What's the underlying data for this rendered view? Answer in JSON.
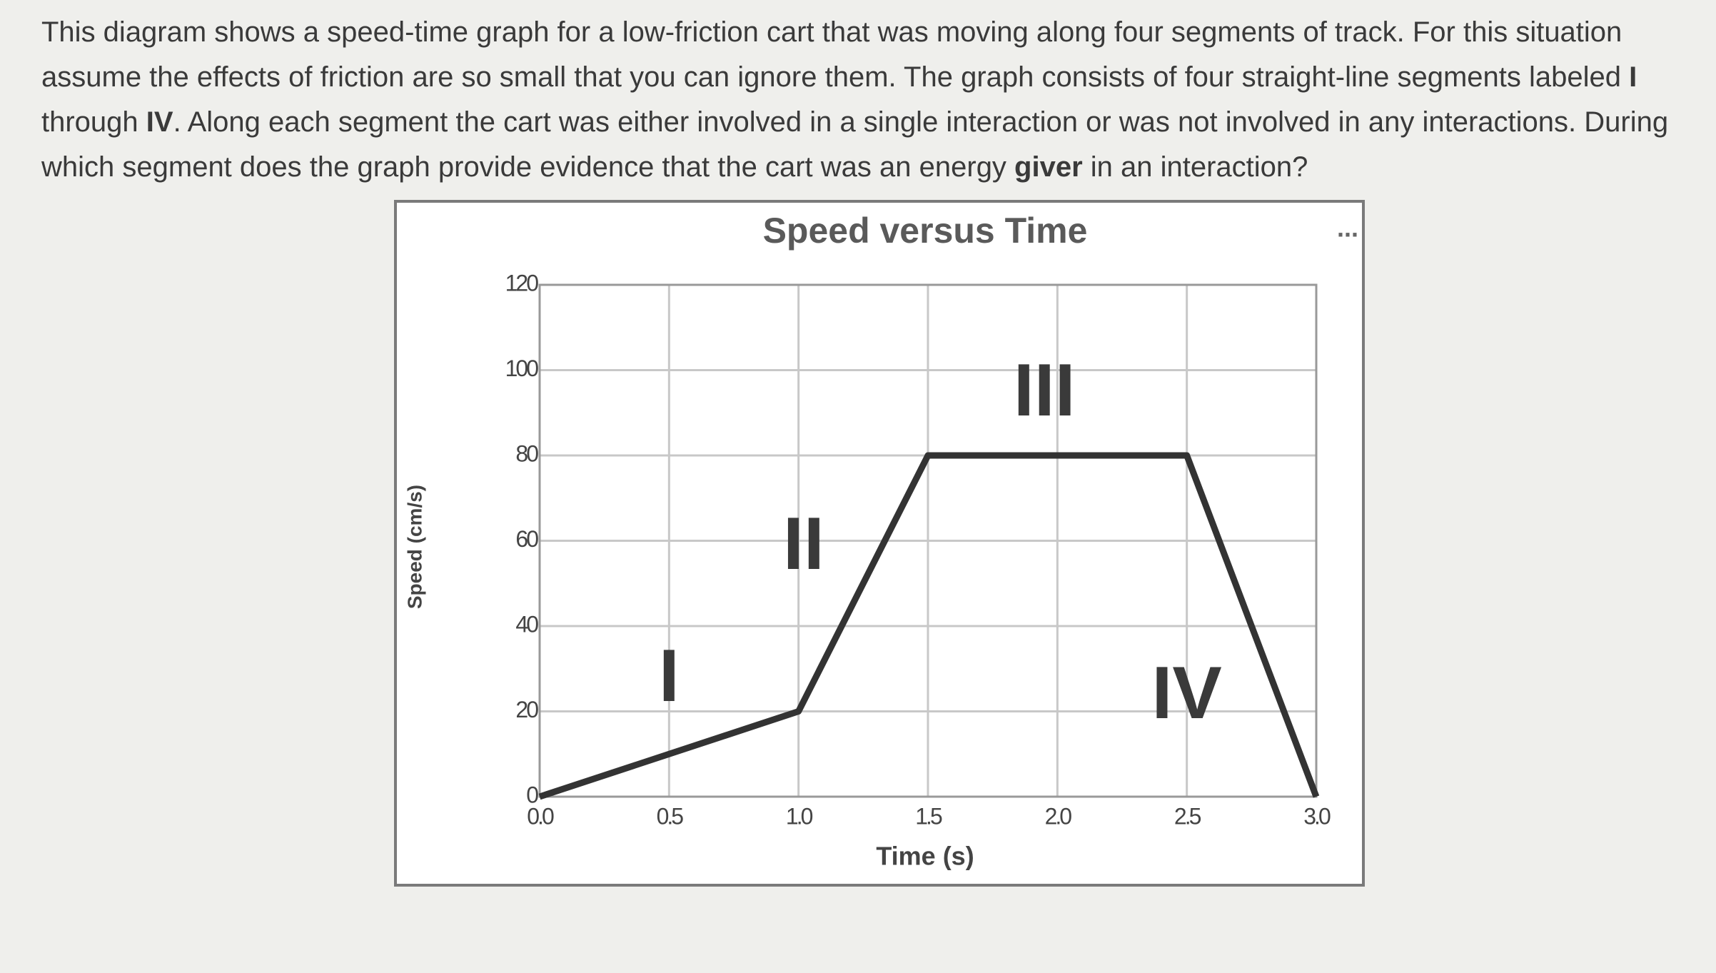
{
  "question": {
    "runs": [
      {
        "text": "This diagram shows a speed-time graph for a low-friction cart that was moving along four segments of track.  For this situation assume the effects of friction are so small that you can ignore them. The graph consists of four straight-line segments labeled ",
        "bold": false
      },
      {
        "text": "I",
        "bold": true
      },
      {
        "text": " through ",
        "bold": false
      },
      {
        "text": "IV",
        "bold": true
      },
      {
        "text": ".  Along each segment the cart was either involved in a single interaction or was not involved in any interactions. During which segment does the graph provide evidence that the cart was an energy ",
        "bold": false
      },
      {
        "text": "giver",
        "bold": true
      },
      {
        "text": " in an interaction?",
        "bold": false
      }
    ]
  },
  "menu": "...",
  "chart_data": {
    "type": "line",
    "title": "Speed versus Time",
    "x_label": "Time (s)",
    "y_label": "Speed (cm/s)",
    "x": [
      0,
      1.0,
      1.5,
      2.5,
      3.0
    ],
    "values": [
      0,
      20,
      80,
      80,
      0
    ],
    "color": "#333333",
    "xlim": [
      0,
      3.0
    ],
    "ylim": [
      0,
      120
    ],
    "xticks": [
      {
        "value": 0,
        "label": "0.0"
      },
      0.5,
      {
        "value": 1.0,
        "label": "1.0"
      },
      1.5,
      {
        "value": 2.0,
        "label": "2.0"
      },
      2.5,
      {
        "value": 3.0,
        "label": "3.0"
      }
    ],
    "yticks": [
      0,
      20,
      40,
      60,
      80,
      100,
      120
    ],
    "grid": true,
    "annotations": [
      {
        "text": "I",
        "x": 0.5,
        "y": 27
      },
      {
        "text": "II",
        "x": 1.02,
        "y": 58
      },
      {
        "text": "III",
        "x": 1.95,
        "y": 94
      },
      {
        "text": "IV",
        "x": 2.5,
        "y": 23
      }
    ]
  }
}
